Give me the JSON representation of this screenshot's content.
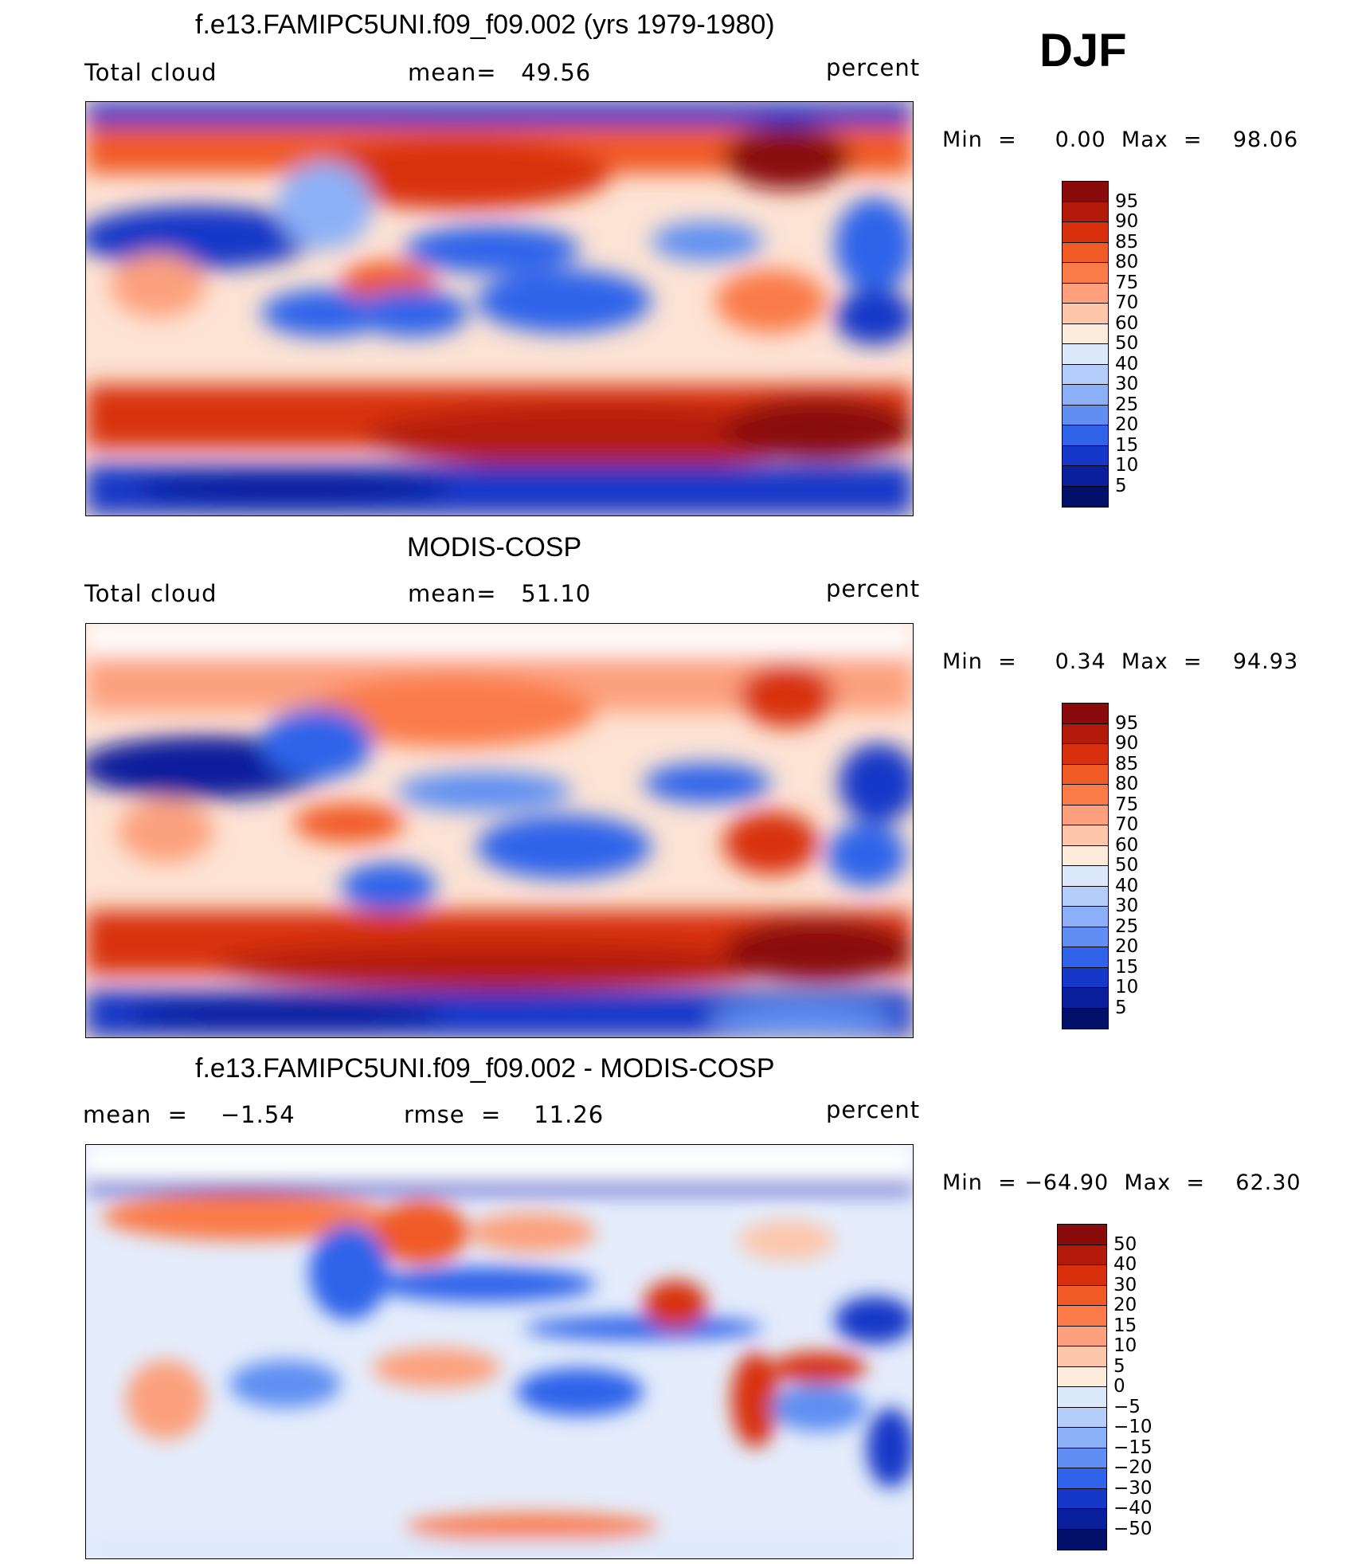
{
  "season": "DJF",
  "panels": [
    {
      "title": "f.e13.FAMIPC5UNI.f09_f09.002 (yrs 1979-1980)",
      "left_label": "Total cloud",
      "center_label": "mean=   49.56",
      "right_label": "percent",
      "minmax": "Min  =     0.00  Max  =    98.06",
      "colorbar": {
        "labels": [
          "95",
          "90",
          "85",
          "80",
          "75",
          "70",
          "60",
          "50",
          "40",
          "30",
          "25",
          "20",
          "15",
          "10",
          "5"
        ],
        "colors": [
          "#8a0b0b",
          "#b41a0a",
          "#d8300d",
          "#f05a25",
          "#fa7a48",
          "#fca07d",
          "#fdc6ab",
          "#fdebdc",
          "#dbe9fb",
          "#b5cdfa",
          "#8cb0f7",
          "#5f8ff2",
          "#2e63ea",
          "#1638c8",
          "#0a1f9c",
          "#03106a"
        ]
      }
    },
    {
      "title": "MODIS-COSP",
      "left_label": "Total cloud",
      "center_label": "mean=   51.10",
      "right_label": "percent",
      "minmax": "Min  =     0.34  Max  =    94.93",
      "colorbar": {
        "labels": [
          "95",
          "90",
          "85",
          "80",
          "75",
          "70",
          "60",
          "50",
          "40",
          "30",
          "25",
          "20",
          "15",
          "10",
          "5"
        ],
        "colors": [
          "#8a0b0b",
          "#b41a0a",
          "#d8300d",
          "#f05a25",
          "#fa7a48",
          "#fca07d",
          "#fdc6ab",
          "#fdebdc",
          "#dbe9fb",
          "#b5cdfa",
          "#8cb0f7",
          "#5f8ff2",
          "#2e63ea",
          "#1638c8",
          "#0a1f9c",
          "#03106a"
        ]
      }
    },
    {
      "title": "f.e13.FAMIPC5UNI.f09_f09.002 - MODIS-COSP",
      "left_label": "mean  =    −1.54",
      "center_label": "rmse  =    11.26",
      "right_label": "percent",
      "minmax": "Min  = −64.90  Max  =    62.30",
      "colorbar": {
        "labels": [
          "50",
          "40",
          "30",
          "20",
          "15",
          "10",
          "5",
          "0",
          "−5",
          "−10",
          "−15",
          "−20",
          "−30",
          "−40",
          "−50"
        ],
        "colors": [
          "#8a0b0b",
          "#b41a0a",
          "#d8300d",
          "#f05a25",
          "#fa7a48",
          "#fca07d",
          "#fdc6ab",
          "#fdebdc",
          "#dbe9fb",
          "#b5cdfa",
          "#8cb0f7",
          "#5f8ff2",
          "#2e63ea",
          "#1638c8",
          "#0a1f9c",
          "#03106a"
        ]
      }
    }
  ]
}
